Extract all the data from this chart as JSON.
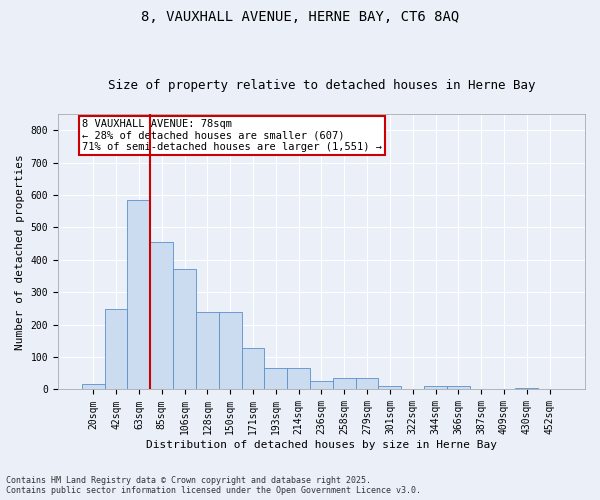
{
  "title_line1": "8, VAUXHALL AVENUE, HERNE BAY, CT6 8AQ",
  "title_line2": "Size of property relative to detached houses in Herne Bay",
  "xlabel": "Distribution of detached houses by size in Herne Bay",
  "ylabel": "Number of detached properties",
  "bar_labels": [
    "20sqm",
    "42sqm",
    "63sqm",
    "85sqm",
    "106sqm",
    "128sqm",
    "150sqm",
    "171sqm",
    "193sqm",
    "214sqm",
    "236sqm",
    "258sqm",
    "279sqm",
    "301sqm",
    "322sqm",
    "344sqm",
    "366sqm",
    "387sqm",
    "409sqm",
    "430sqm",
    "452sqm"
  ],
  "bar_values": [
    18,
    248,
    585,
    455,
    373,
    240,
    240,
    127,
    65,
    65,
    25,
    35,
    35,
    12,
    0,
    10,
    10,
    0,
    0,
    5,
    0
  ],
  "bar_color": "#ccdcf0",
  "bar_edge_color": "#5b8fc9",
  "vline_x": 2.5,
  "vline_color": "#cc0000",
  "ylim": [
    0,
    850
  ],
  "yticks": [
    0,
    100,
    200,
    300,
    400,
    500,
    600,
    700,
    800
  ],
  "annotation_text": "8 VAUXHALL AVENUE: 78sqm\n← 28% of detached houses are smaller (607)\n71% of semi-detached houses are larger (1,551) →",
  "annotation_box_color": "#ffffff",
  "annotation_box_edge": "#cc0000",
  "footer_line1": "Contains HM Land Registry data © Crown copyright and database right 2025.",
  "footer_line2": "Contains public sector information licensed under the Open Government Licence v3.0.",
  "bg_color": "#eaeff8",
  "plot_bg_color": "#eaeff8",
  "grid_color": "#ffffff",
  "title_fontsize": 10,
  "subtitle_fontsize": 9,
  "tick_fontsize": 7,
  "ylabel_fontsize": 8,
  "xlabel_fontsize": 8,
  "annotation_fontsize": 7.5,
  "footer_fontsize": 6
}
